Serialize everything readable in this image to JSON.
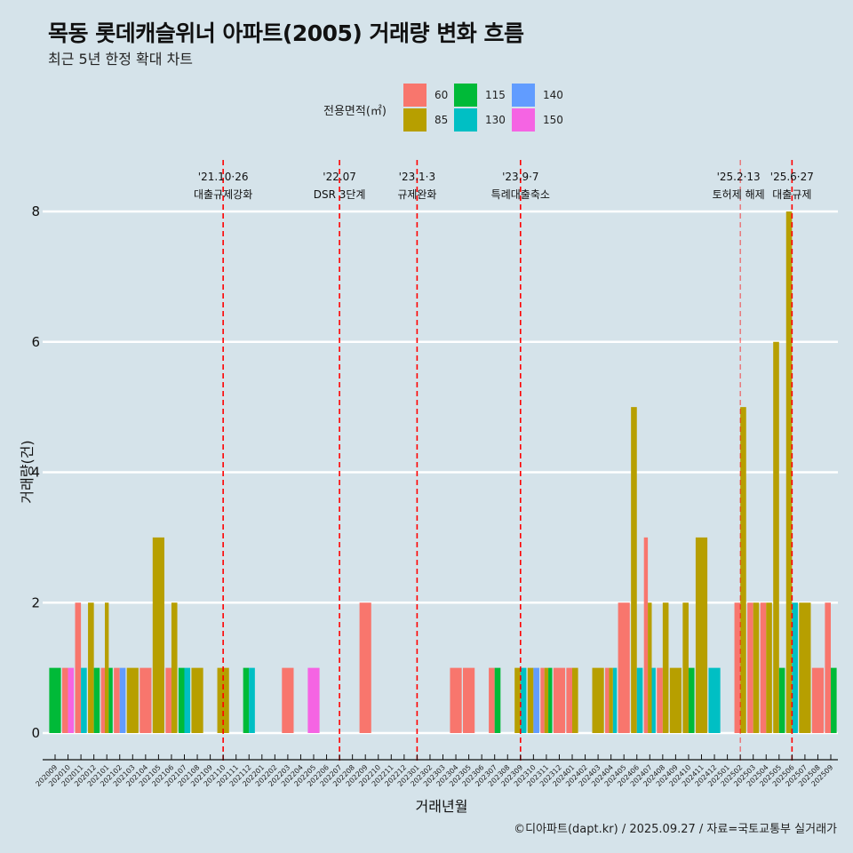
{
  "title": "목동 롯데캐슬위너 아파트(2005) 거래량 변화 흐름",
  "subtitle": "최근 5년 한정 확대 차트",
  "caption": "©디아파트(dapt.kr) / 2025.09.27 / 자료=국토교통부 실거래가",
  "legend": {
    "title": "전용면적(㎡)",
    "items": [
      {
        "label": "60",
        "color": "#F8766D"
      },
      {
        "label": "85",
        "color": "#B79F00"
      },
      {
        "label": "115",
        "color": "#00BA38"
      },
      {
        "label": "130",
        "color": "#00BFC4"
      },
      {
        "label": "140",
        "color": "#619CFF"
      },
      {
        "label": "150",
        "color": "#F564E3"
      }
    ]
  },
  "chart_data": {
    "type": "bar",
    "title": "목동 롯데캐슬위너 아파트(2005) 거래량 변화 흐름",
    "subtitle": "최근 5년 한정 확대 차트",
    "xlabel": "거래년월",
    "ylabel": "거래량(건)",
    "ylim": [
      0,
      8
    ],
    "yticks": [
      0,
      2,
      4,
      6,
      8
    ],
    "grid": "horizontal",
    "legend_position": "top",
    "position": "dodge",
    "categories": [
      "202009",
      "202010",
      "202011",
      "202012",
      "202101",
      "202102",
      "202103",
      "202104",
      "202105",
      "202106",
      "202107",
      "202108",
      "202109",
      "202110",
      "202111",
      "202112",
      "202201",
      "202202",
      "202203",
      "202204",
      "202205",
      "202206",
      "202207",
      "202208",
      "202209",
      "202210",
      "202211",
      "202212",
      "202301",
      "202302",
      "202303",
      "202304",
      "202305",
      "202306",
      "202307",
      "202308",
      "202309",
      "202310",
      "202311",
      "202312",
      "202401",
      "202402",
      "202403",
      "202404",
      "202405",
      "202406",
      "202407",
      "202408",
      "202409",
      "202410",
      "202411",
      "202412",
      "202501",
      "202502",
      "202503",
      "202504",
      "202505",
      "202506",
      "202507",
      "202508",
      "202509"
    ],
    "series_names": [
      "60",
      "85",
      "115",
      "130",
      "140",
      "150"
    ],
    "records": [
      {
        "month": "202009",
        "values": {
          "115": 1
        }
      },
      {
        "month": "202010",
        "values": {
          "60": 1,
          "150": 1
        }
      },
      {
        "month": "202011",
        "values": {
          "60": 2,
          "130": 1
        }
      },
      {
        "month": "202012",
        "values": {
          "85": 2,
          "115": 1
        }
      },
      {
        "month": "202101",
        "values": {
          "60": 1,
          "85": 2,
          "115": 1
        }
      },
      {
        "month": "202102",
        "values": {
          "60": 1,
          "140": 1
        }
      },
      {
        "month": "202103",
        "values": {
          "85": 1
        }
      },
      {
        "month": "202104",
        "values": {
          "60": 1
        }
      },
      {
        "month": "202105",
        "values": {
          "85": 3
        }
      },
      {
        "month": "202106",
        "values": {
          "60": 1,
          "85": 2
        }
      },
      {
        "month": "202107",
        "values": {
          "115": 1,
          "130": 1
        }
      },
      {
        "month": "202108",
        "values": {
          "85": 1
        }
      },
      {
        "month": "202110",
        "values": {
          "85": 1
        }
      },
      {
        "month": "202112",
        "values": {
          "115": 1,
          "130": 1
        }
      },
      {
        "month": "202203",
        "values": {
          "60": 1
        }
      },
      {
        "month": "202205",
        "values": {
          "150": 1
        }
      },
      {
        "month": "202209",
        "values": {
          "60": 2
        }
      },
      {
        "month": "202304",
        "values": {
          "60": 1
        }
      },
      {
        "month": "202305",
        "values": {
          "60": 1
        }
      },
      {
        "month": "202307",
        "values": {
          "60": 1,
          "115": 1
        }
      },
      {
        "month": "202309",
        "values": {
          "85": 1,
          "130": 1
        }
      },
      {
        "month": "202310",
        "values": {
          "85": 1,
          "140": 1
        }
      },
      {
        "month": "202311",
        "values": {
          "60": 1,
          "85": 1,
          "115": 1
        }
      },
      {
        "month": "202312",
        "values": {
          "60": 1
        }
      },
      {
        "month": "202401",
        "values": {
          "60": 1,
          "85": 1
        }
      },
      {
        "month": "202403",
        "values": {
          "85": 1
        }
      },
      {
        "month": "202404",
        "values": {
          "60": 1,
          "85": 1,
          "130": 1
        }
      },
      {
        "month": "202405",
        "values": {
          "60": 2
        }
      },
      {
        "month": "202406",
        "values": {
          "85": 5,
          "130": 1
        }
      },
      {
        "month": "202407",
        "values": {
          "60": 3,
          "85": 2,
          "130": 1
        }
      },
      {
        "month": "202408",
        "values": {
          "60": 1,
          "85": 2
        }
      },
      {
        "month": "202409",
        "values": {
          "85": 1
        }
      },
      {
        "month": "202410",
        "values": {
          "85": 2,
          "115": 1
        }
      },
      {
        "month": "202411",
        "values": {
          "85": 3
        }
      },
      {
        "month": "202412",
        "values": {
          "130": 1
        }
      },
      {
        "month": "202502",
        "values": {
          "60": 2,
          "85": 5
        }
      },
      {
        "month": "202503",
        "values": {
          "60": 2,
          "85": 2
        }
      },
      {
        "month": "202504",
        "values": {
          "60": 2,
          "85": 2
        }
      },
      {
        "month": "202505",
        "values": {
          "85": 6,
          "115": 1
        }
      },
      {
        "month": "202506",
        "values": {
          "85": 8,
          "130": 2
        }
      },
      {
        "month": "202507",
        "values": {
          "85": 2
        }
      },
      {
        "month": "202508",
        "values": {
          "60": 1
        }
      },
      {
        "month": "202509",
        "values": {
          "60": 2,
          "115": 1
        }
      }
    ],
    "annotations": [
      {
        "month": "202110",
        "date": "'21.10·26",
        "label": "대출규제강화",
        "style": "dashed"
      },
      {
        "month": "202207",
        "date": "'22.07",
        "label": "DSR 3단계",
        "style": "dashed"
      },
      {
        "month": "202301",
        "date": "'23.1·3",
        "label": "규제완화",
        "style": "dashed"
      },
      {
        "month": "202309",
        "date": "'23.9·7",
        "label": "특례대출축소",
        "style": "dashed"
      },
      {
        "month": "202502",
        "date": "'25.2·13",
        "label": "토허제 해제",
        "style": "dashed-light"
      },
      {
        "month": "202506",
        "date": "'25.6·27",
        "label": "대출규제",
        "style": "dashed"
      }
    ],
    "annotation_color": "#FF0000"
  }
}
